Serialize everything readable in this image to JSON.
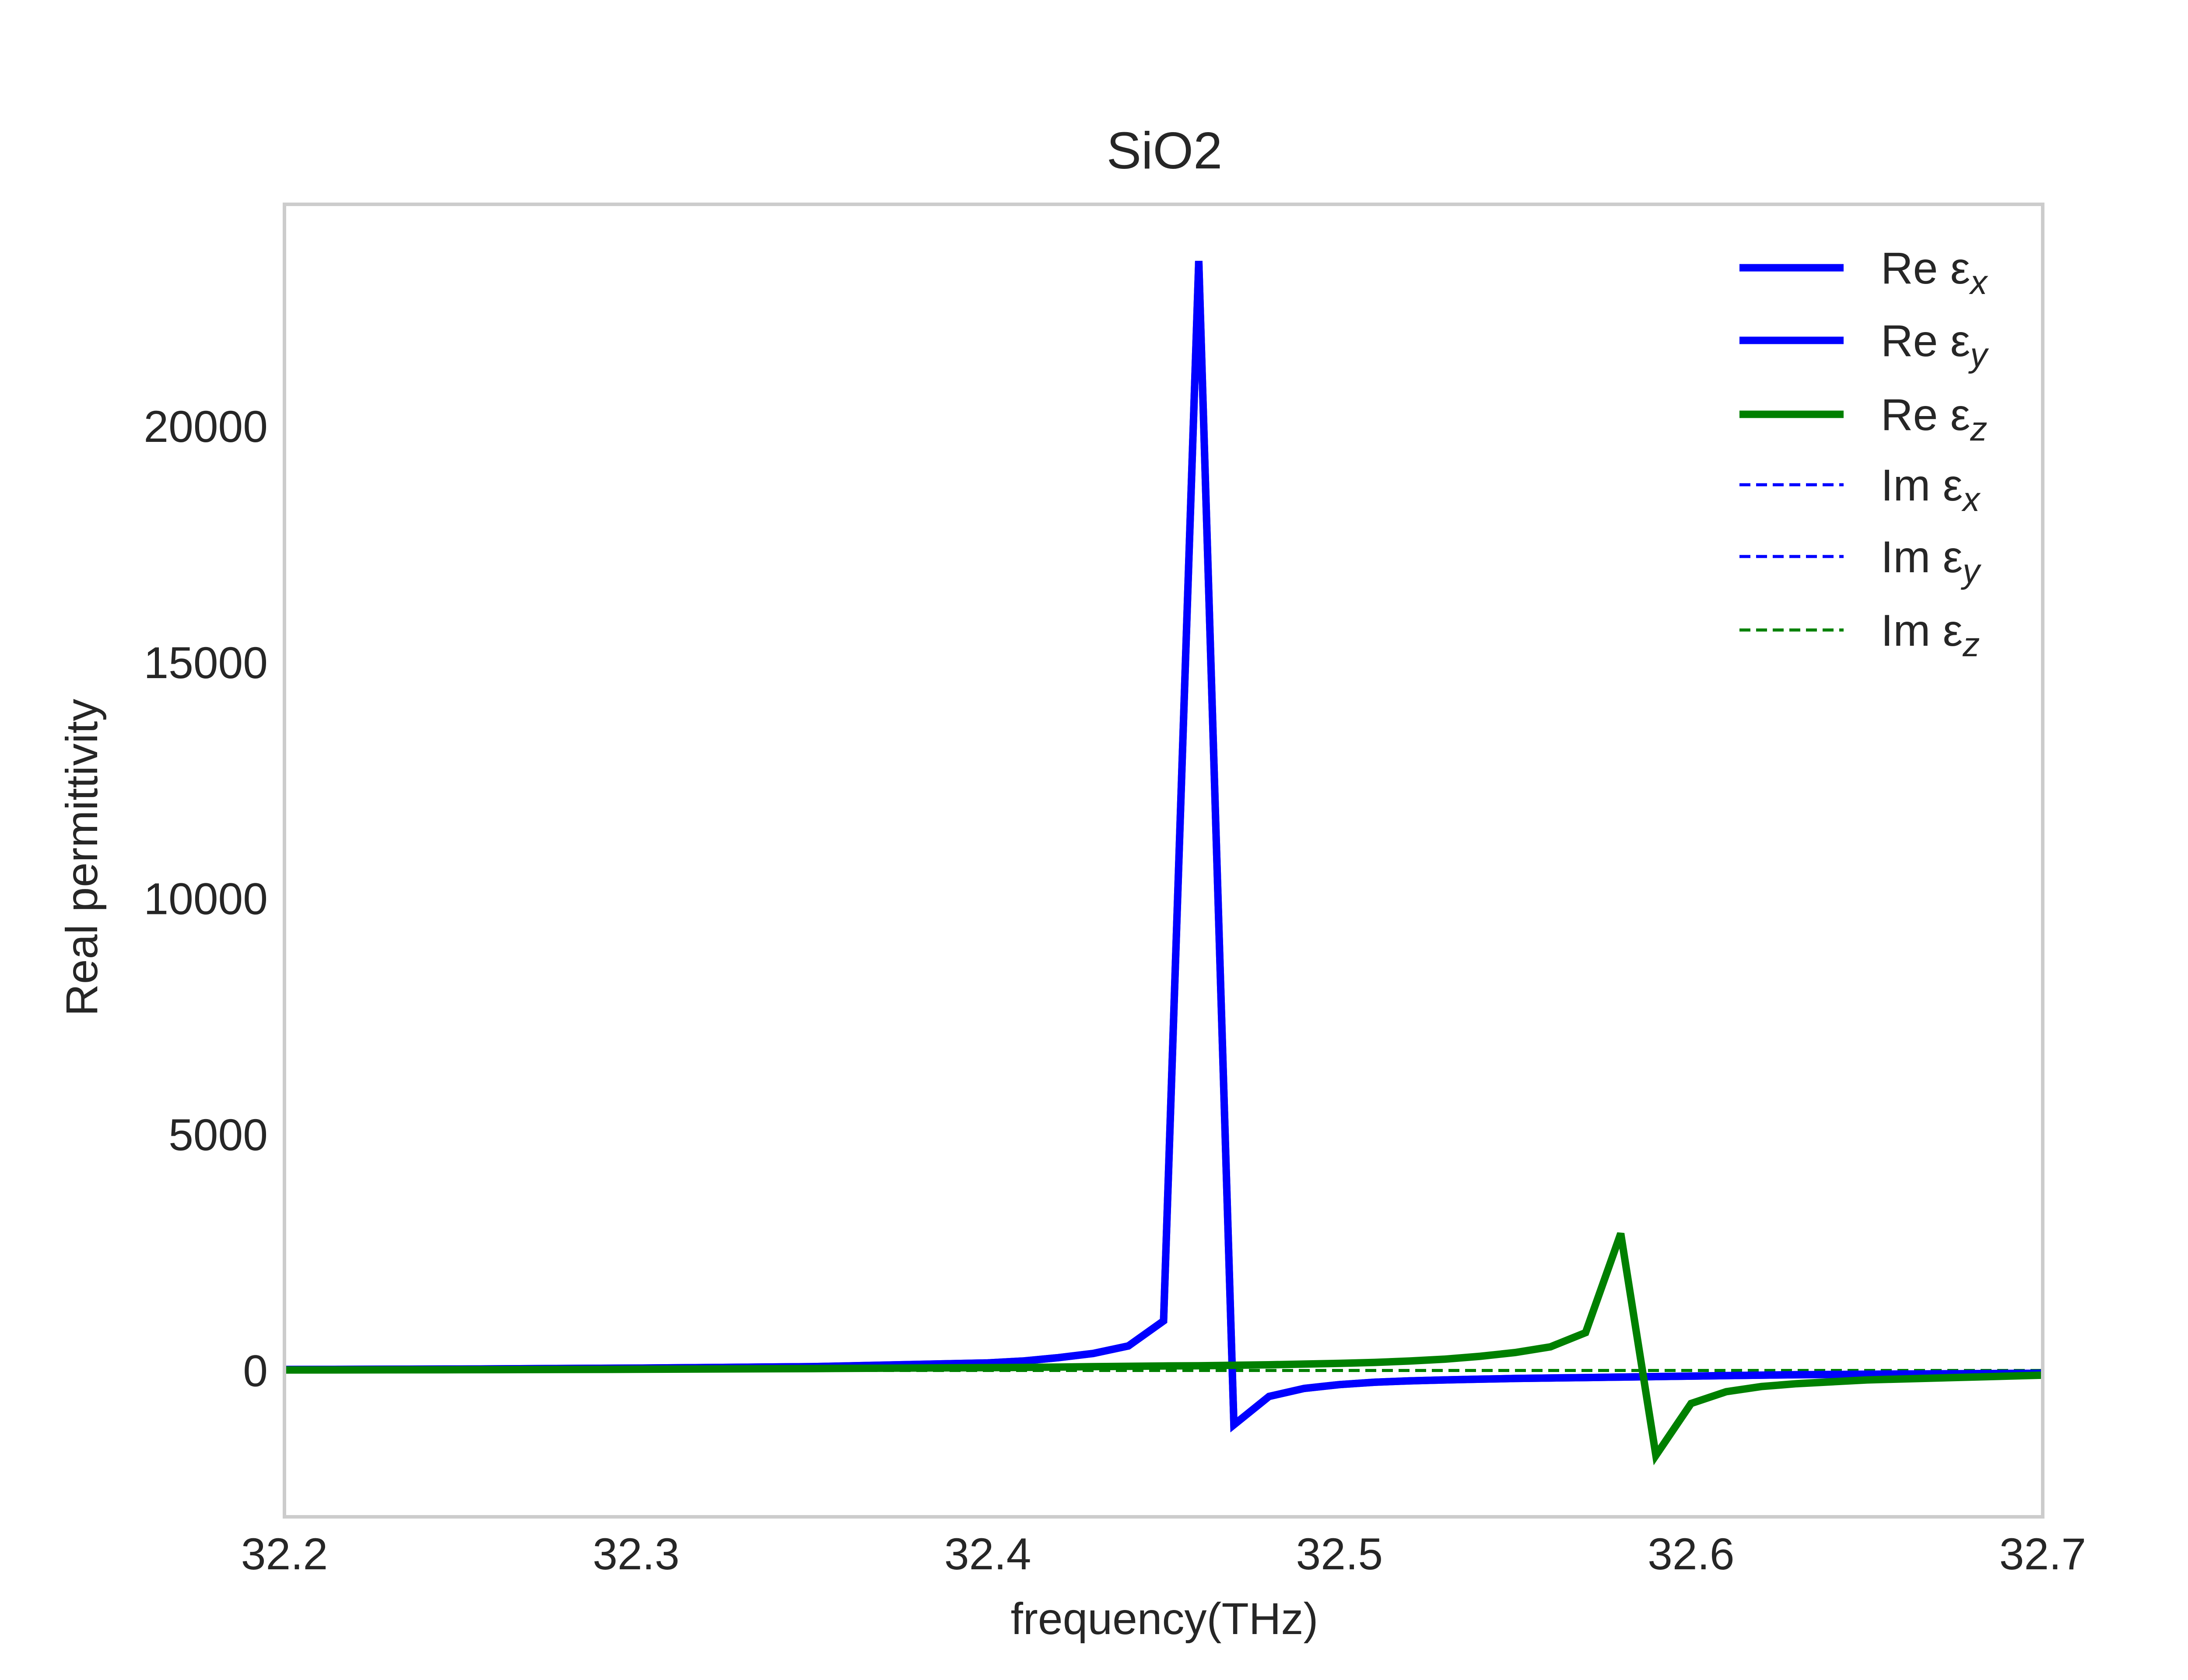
{
  "chart_data": {
    "type": "line",
    "title": "SiO2",
    "xlabel": "frequency(THz)",
    "ylabel": "Real permittivity",
    "xlim": [
      32.2,
      32.7
    ],
    "ylim": [
      -3100,
      24700
    ],
    "x_ticks": [
      32.2,
      32.3,
      32.4,
      32.5,
      32.6,
      32.7
    ],
    "x_tick_labels": [
      "32.2",
      "32.3",
      "32.4",
      "32.5",
      "32.6",
      "32.7"
    ],
    "y_ticks": [
      0,
      5000,
      10000,
      15000,
      20000
    ],
    "y_tick_labels": [
      "0",
      "5000",
      "10000",
      "15000",
      "20000"
    ],
    "grid": true,
    "legend_position": "top-right",
    "x": [
      32.2,
      32.25,
      32.3,
      32.35,
      32.4,
      32.41,
      32.42,
      32.43,
      32.44,
      32.45,
      32.46,
      32.47,
      32.48,
      32.49,
      32.5,
      32.51,
      32.52,
      32.53,
      32.54,
      32.55,
      32.56,
      32.57,
      32.58,
      32.59,
      32.6,
      32.61,
      32.62,
      32.63,
      32.65,
      32.7
    ],
    "series": [
      {
        "name": "Re εx",
        "style": "solid",
        "color": "#0000ff",
        "values": [
          20,
          30,
          50,
          80,
          160,
          200,
          270,
          360,
          520,
          1050,
          23500,
          -1150,
          -550,
          -380,
          -300,
          -250,
          -220,
          -200,
          -185,
          -170,
          -160,
          -150,
          -140,
          -130,
          -120,
          -110,
          -100,
          -90,
          -80,
          -60
        ]
      },
      {
        "name": "Re εy",
        "style": "solid",
        "color": "#0000ff",
        "values": [
          20,
          30,
          50,
          80,
          160,
          200,
          270,
          360,
          520,
          1050,
          23500,
          -1150,
          -550,
          -380,
          -300,
          -250,
          -220,
          -200,
          -185,
          -170,
          -160,
          -150,
          -140,
          -130,
          -120,
          -110,
          -100,
          -90,
          -80,
          -60
        ]
      },
      {
        "name": "Re εz",
        "style": "solid",
        "color": "#008000",
        "values": [
          10,
          15,
          25,
          40,
          60,
          65,
          72,
          80,
          88,
          95,
          100,
          110,
          120,
          135,
          150,
          170,
          200,
          240,
          300,
          380,
          500,
          800,
          2900,
          -1800,
          -700,
          -450,
          -340,
          -280,
          -200,
          -100
        ]
      },
      {
        "name": "Im εx",
        "style": "dashed",
        "color": "#0000ff",
        "values": [
          0,
          0,
          0,
          0,
          0,
          0,
          0,
          0,
          0,
          0,
          0,
          0,
          0,
          0,
          0,
          0,
          0,
          0,
          0,
          0,
          0,
          0,
          0,
          0,
          0,
          0,
          0,
          0,
          0,
          0
        ]
      },
      {
        "name": "Im εy",
        "style": "dashed",
        "color": "#0000ff",
        "values": [
          0,
          0,
          0,
          0,
          0,
          0,
          0,
          0,
          0,
          0,
          0,
          0,
          0,
          0,
          0,
          0,
          0,
          0,
          0,
          0,
          0,
          0,
          0,
          0,
          0,
          0,
          0,
          0,
          0,
          0
        ]
      },
      {
        "name": "Im εz",
        "style": "dashed",
        "color": "#008000",
        "values": [
          0,
          0,
          0,
          0,
          0,
          0,
          0,
          0,
          0,
          0,
          0,
          0,
          0,
          0,
          0,
          0,
          0,
          0,
          0,
          0,
          0,
          0,
          0,
          0,
          0,
          0,
          0,
          0,
          0,
          0
        ]
      }
    ],
    "legend": [
      {
        "prefix": "Re ε",
        "sub": "x",
        "series_index": 0
      },
      {
        "prefix": "Re ε",
        "sub": "y",
        "series_index": 1
      },
      {
        "prefix": "Re ε",
        "sub": "z",
        "series_index": 2
      },
      {
        "prefix": "Im ε",
        "sub": "x",
        "series_index": 3
      },
      {
        "prefix": "Im ε",
        "sub": "y",
        "series_index": 4
      },
      {
        "prefix": "Im ε",
        "sub": "z",
        "series_index": 5
      }
    ]
  }
}
